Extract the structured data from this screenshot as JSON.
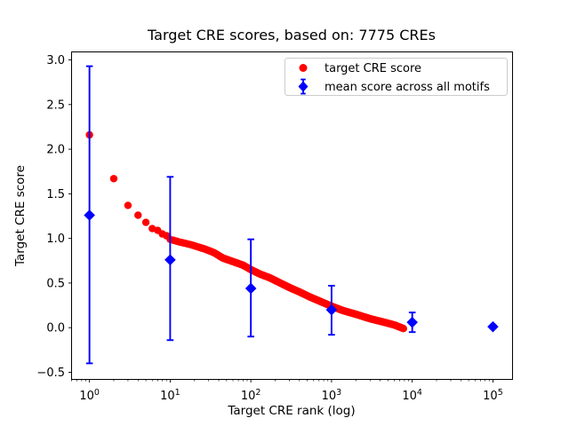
{
  "colors": {
    "target_series": "#ff0000",
    "mean_series": "#0000ff",
    "axis": "#000000",
    "legend_border": "#cccccc",
    "background": "#ffffff"
  },
  "chart_data": {
    "type": "scatter",
    "title": "Target CRE scores, based on: 7775 CREs",
    "xlabel": "Target CRE rank (log)",
    "ylabel": "Target CRE score",
    "x_scale": "log",
    "y_scale": "linear",
    "xlim": [
      0.6,
      175000
    ],
    "ylim": [
      -0.58,
      3.09
    ],
    "grid": false,
    "n_cres": 7775,
    "x_ticks": [
      {
        "value": 1,
        "label": "10^0"
      },
      {
        "value": 10,
        "label": "10^1"
      },
      {
        "value": 100,
        "label": "10^2"
      },
      {
        "value": 1000,
        "label": "10^3"
      },
      {
        "value": 10000,
        "label": "10^4"
      },
      {
        "value": 100000,
        "label": "10^5"
      }
    ],
    "y_ticks": [
      {
        "value": -0.5,
        "label": "−0.5"
      },
      {
        "value": 0.0,
        "label": "0.0"
      },
      {
        "value": 0.5,
        "label": "0.5"
      },
      {
        "value": 1.0,
        "label": "1.0"
      },
      {
        "value": 1.5,
        "label": "1.5"
      },
      {
        "value": 2.0,
        "label": "2.0"
      },
      {
        "value": 2.5,
        "label": "2.5"
      },
      {
        "value": 3.0,
        "label": "3.0"
      }
    ],
    "legend": {
      "position": "upper right",
      "entries": [
        "target CRE score",
        "mean score across all motifs"
      ]
    },
    "series": [
      {
        "name": "target CRE score",
        "marker": "circle",
        "color": "#ff0000",
        "n_points": 7775,
        "curve_anchors": [
          [
            1,
            2.16
          ],
          [
            2,
            1.67
          ],
          [
            3,
            1.37
          ],
          [
            4,
            1.26
          ],
          [
            5,
            1.18
          ],
          [
            6,
            1.11
          ],
          [
            7,
            1.09
          ],
          [
            8,
            1.05
          ],
          [
            9,
            1.03
          ],
          [
            10,
            0.99
          ],
          [
            13,
            0.96
          ],
          [
            18,
            0.93
          ],
          [
            27,
            0.88
          ],
          [
            35,
            0.84
          ],
          [
            45,
            0.78
          ],
          [
            60,
            0.74
          ],
          [
            80,
            0.7
          ],
          [
            100,
            0.65
          ],
          [
            130,
            0.6
          ],
          [
            170,
            0.56
          ],
          [
            220,
            0.51
          ],
          [
            300,
            0.45
          ],
          [
            400,
            0.4
          ],
          [
            550,
            0.34
          ],
          [
            700,
            0.3
          ],
          [
            1000,
            0.24
          ],
          [
            1400,
            0.19
          ],
          [
            2000,
            0.15
          ],
          [
            3000,
            0.1
          ],
          [
            4500,
            0.06
          ],
          [
            6000,
            0.03
          ],
          [
            7775,
            -0.01
          ]
        ]
      },
      {
        "name": "mean score across all motifs",
        "marker": "diamond",
        "color": "#0000ff",
        "points": [
          {
            "x": 1,
            "y": 1.26,
            "err_lo": -0.4,
            "err_hi": 2.93
          },
          {
            "x": 10,
            "y": 0.76,
            "err_lo": -0.14,
            "err_hi": 1.69
          },
          {
            "x": 100,
            "y": 0.44,
            "err_lo": -0.1,
            "err_hi": 0.99
          },
          {
            "x": 1000,
            "y": 0.2,
            "err_lo": -0.08,
            "err_hi": 0.47
          },
          {
            "x": 10000,
            "y": 0.06,
            "err_lo": -0.05,
            "err_hi": 0.17
          },
          {
            "x": 100000,
            "y": 0.01,
            "err_lo": 0.01,
            "err_hi": 0.01
          }
        ]
      }
    ]
  }
}
